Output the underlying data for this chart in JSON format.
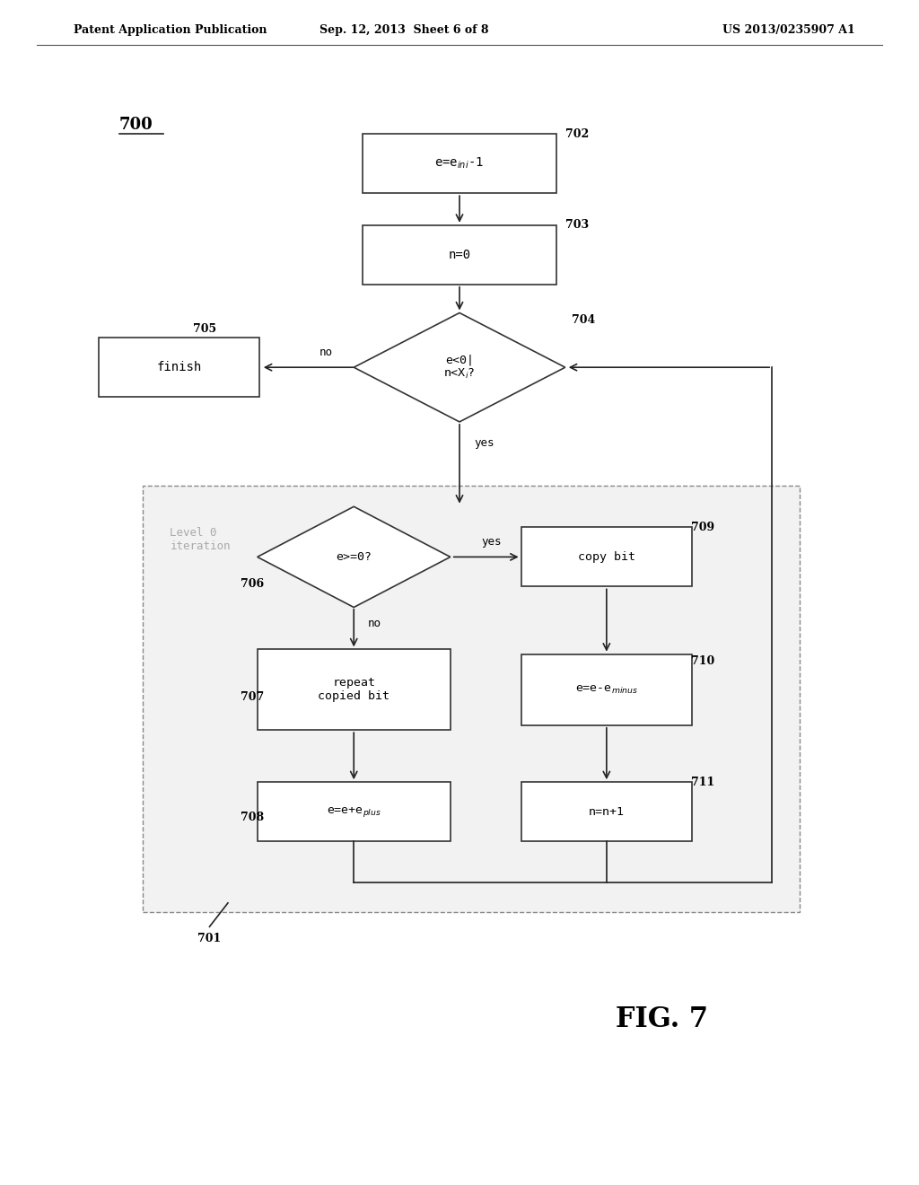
{
  "header_left": "Patent Application Publication",
  "header_mid": "Sep. 12, 2013  Sheet 6 of 8",
  "header_right": "US 2013/0235907 A1",
  "fig_label": "FIG. 7",
  "diagram_label": "700",
  "bg_color": "#ffffff",
  "box_edge_color": "#333333",
  "box_fill_color": "#ffffff",
  "diamond_fill_color": "#ffffff",
  "level0_fill": "#f0f0f0",
  "level0_label": "Level 0\niteration",
  "font_family": "monospace"
}
